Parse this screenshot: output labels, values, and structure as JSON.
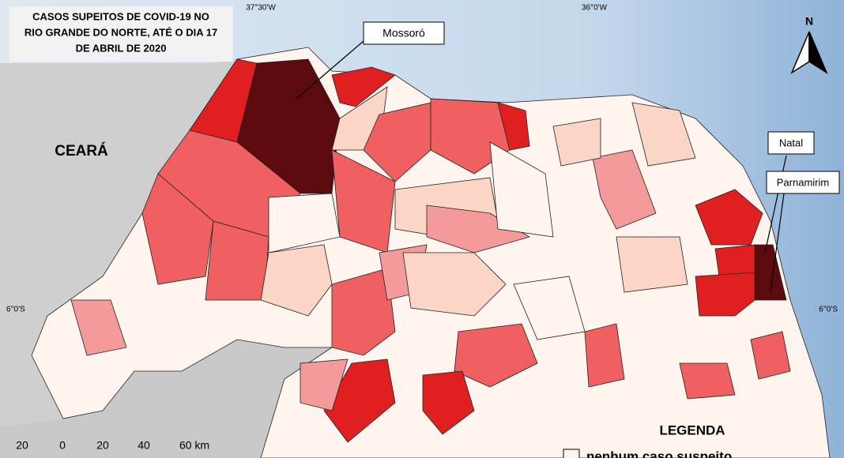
{
  "title_lines": [
    "CASOS SUPEITOS DE COVID-19 NO",
    "RIO GRANDE DO NORTE, ATÉ O DIA 17",
    "DE ABRIL DE 2020"
  ],
  "labels": {
    "mossoro": "Mossoró",
    "natal": "Natal",
    "parnamirim": "Parnamirim",
    "ceara": "CEARÁ"
  },
  "coordinates": {
    "top": [
      "37°30'W",
      "36°0'W"
    ],
    "left": "6°0'S",
    "right": "6°0'S"
  },
  "scale_bar": [
    "20",
    "0",
    "20",
    "40",
    "60 km"
  ],
  "north": "N",
  "legend": {
    "title": "LEGENDA",
    "items": [
      "nenhum caso suspeito"
    ]
  }
}
